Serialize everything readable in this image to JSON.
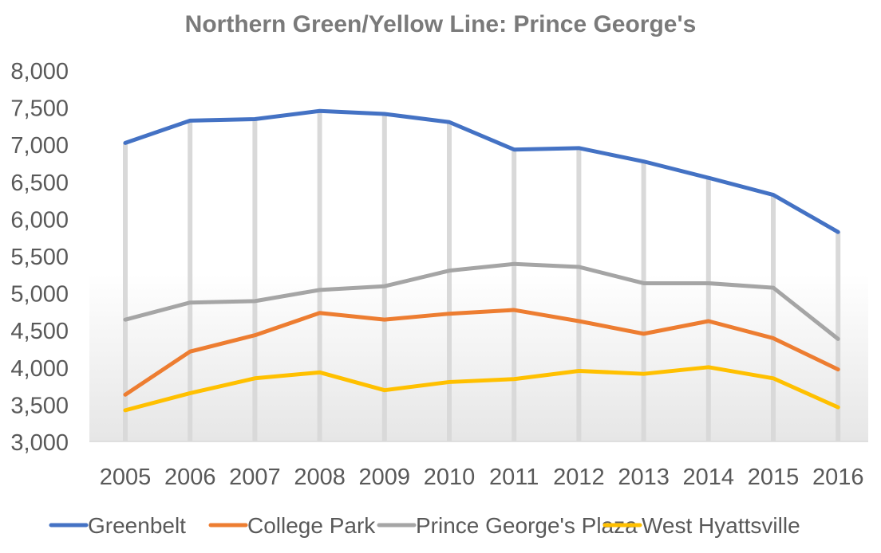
{
  "chart_data": {
    "type": "line",
    "title": "Northern Green/Yellow Line: Prince George's",
    "xlabel": "",
    "ylabel": "",
    "categories": [
      "2005",
      "2006",
      "2007",
      "2008",
      "2009",
      "2010",
      "2011",
      "2012",
      "2013",
      "2014",
      "2015",
      "2016"
    ],
    "ylim": [
      3000,
      8000
    ],
    "yticks": [
      3000,
      3500,
      4000,
      4500,
      5000,
      5500,
      6000,
      6500,
      7000,
      7500,
      8000
    ],
    "ytick_labels": [
      "3,000",
      "3,500",
      "4,000",
      "4,500",
      "5,000",
      "5,500",
      "6,000",
      "6,500",
      "7,000",
      "7,500",
      "8,000"
    ],
    "grid": "vertical drop lines",
    "legend_position": "bottom",
    "series": [
      {
        "name": "Greenbelt",
        "color": "#4472c4",
        "values": [
          7020,
          7320,
          7340,
          7450,
          7410,
          7300,
          6930,
          6950,
          6770,
          6550,
          6320,
          5820
        ]
      },
      {
        "name": "College Park",
        "color": "#ed7d31",
        "values": [
          3630,
          4210,
          4430,
          4730,
          4640,
          4720,
          4770,
          4620,
          4450,
          4620,
          4390,
          3970
        ]
      },
      {
        "name": "Prince George's Plaza",
        "color": "#a5a5a5",
        "values": [
          4640,
          4870,
          4890,
          5040,
          5090,
          5300,
          5390,
          5350,
          5130,
          5130,
          5070,
          4380
        ]
      },
      {
        "name": "West Hyattsville",
        "color": "#ffc000",
        "values": [
          3420,
          3650,
          3850,
          3930,
          3690,
          3800,
          3840,
          3950,
          3910,
          4000,
          3850,
          3460
        ]
      }
    ]
  }
}
